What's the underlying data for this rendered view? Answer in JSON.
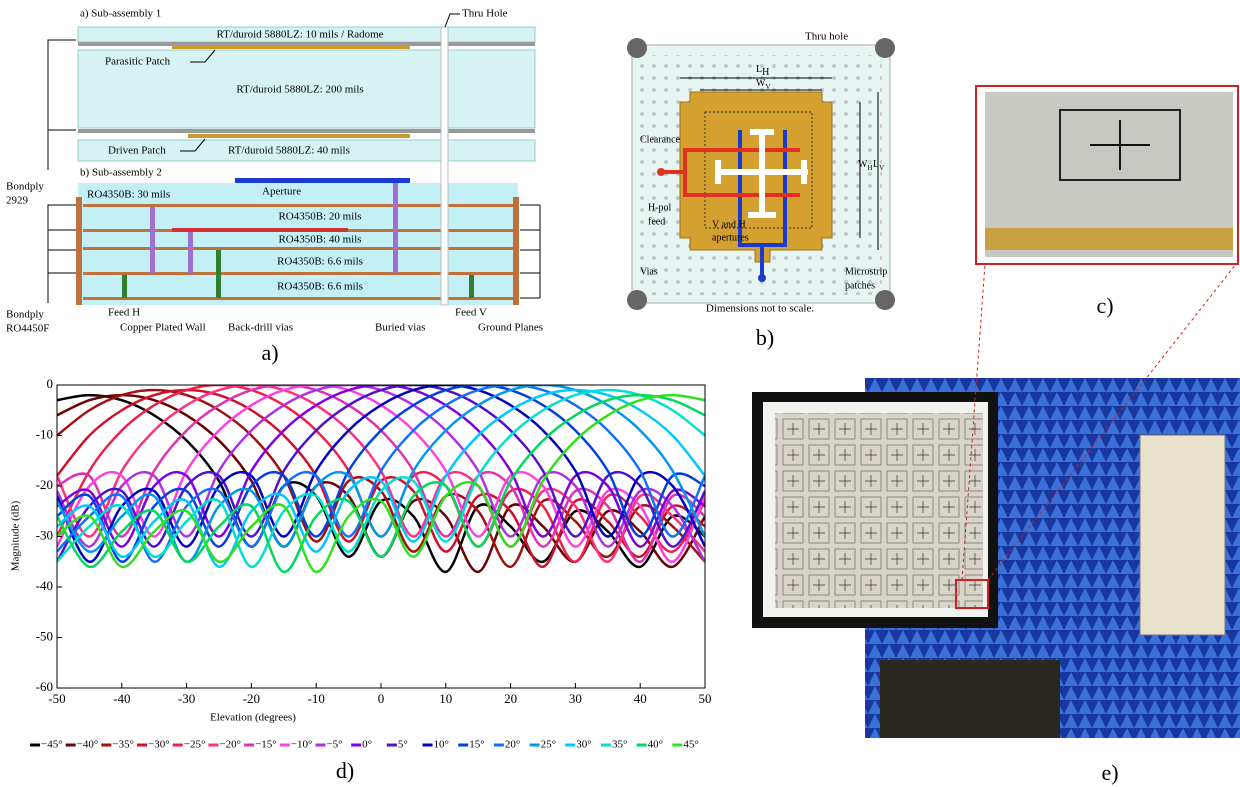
{
  "panel_a": {
    "label": "a)",
    "sub1": "a) Sub-assembly 1",
    "sub2": "b) Sub-assembly 2",
    "layers": [
      "RT/duroid 5880LZ: 10 mils / Radome",
      "RT/duroid 5880LZ: 200 mils",
      "RT/duroid 5880LZ: 40 mils",
      "RO4350B: 30 mils",
      "RO4350B: 20 mils",
      "RO4350B: 40 mils",
      "RO4350B: 6.6 mils",
      "RO4350B: 6.6 mils"
    ],
    "thru_hole": "Thru Hole",
    "parasitic": "Parasitic Patch",
    "driven": "Driven Patch",
    "aperture": "Aperture",
    "bondply1": [
      "Bondply",
      "2929"
    ],
    "bondply2": [
      "Bondply",
      "RO4450F"
    ],
    "feed_h": "Feed H",
    "feed_v": "Feed V",
    "wall": "Copper Plated Wall",
    "backdrill": "Back-drill vias",
    "buried": "Buried vias",
    "ground": "Ground Planes"
  },
  "panel_b": {
    "label": "b)",
    "thru_hole": "Thru hole",
    "lh": "L",
    "lh_sub": "H",
    "wv": "W",
    "wv_sub": "V",
    "wh": "W",
    "wh_sub": "H",
    "lv": "L",
    "lv_sub": "V",
    "clearance": "Clearance",
    "hpol": [
      "H-pol",
      "feed"
    ],
    "apertures": [
      "V and H",
      "apertures"
    ],
    "vias": "Vias",
    "patches": [
      "Microstrip",
      "patches"
    ],
    "note": "Dimensions not to scale."
  },
  "panel_c": {
    "label": "c)"
  },
  "panel_e": {
    "label": "e)"
  },
  "chart_data": {
    "type": "line",
    "label": "d)",
    "xlabel": "Elevation (degrees)",
    "ylabel": "Magnitude (dB)",
    "xlim": [
      -50,
      50
    ],
    "ylim": [
      -60,
      0
    ],
    "xticks": [
      -50,
      -40,
      -30,
      -20,
      -10,
      0,
      10,
      20,
      30,
      40,
      50
    ],
    "yticks": [
      -60,
      -50,
      -40,
      -30,
      -20,
      -10,
      0
    ],
    "x": [
      -50,
      -45,
      -40,
      -35,
      -30,
      -25,
      -20,
      -15,
      -10,
      -5,
      0,
      5,
      10,
      15,
      20,
      25,
      30,
      35,
      40,
      45,
      50
    ],
    "series": [
      {
        "name": "−45°",
        "color": "#000000",
        "values": [
          -3,
          -2,
          -3,
          -6,
          -11,
          -19,
          -32,
          -20,
          -22,
          -34,
          -23,
          -26,
          -37,
          -24,
          -28,
          -35,
          -25,
          -29,
          -36,
          -26,
          -30
        ]
      },
      {
        "name": "−40°",
        "color": "#6b0000",
        "values": [
          -6,
          -3,
          -2,
          -3,
          -6,
          -11,
          -19,
          -32,
          -20,
          -22,
          -34,
          -23,
          -26,
          -37,
          -24,
          -28,
          -35,
          -25,
          -29,
          -36,
          -26
        ]
      },
      {
        "name": "−35°",
        "color": "#a01010",
        "values": [
          -10,
          -5,
          -2,
          -1,
          -2,
          -5,
          -10,
          -18,
          -31,
          -19,
          -21,
          -33,
          -22,
          -25,
          -36,
          -23,
          -27,
          -34,
          -24,
          -28,
          -35
        ]
      },
      {
        "name": "−30°",
        "color": "#d0102a",
        "values": [
          -18,
          -10,
          -5,
          -2,
          -1,
          -2,
          -5,
          -10,
          -18,
          -31,
          -19,
          -21,
          -33,
          -22,
          -25,
          -36,
          -23,
          -27,
          -34,
          -24,
          -28
        ]
      },
      {
        "name": "−25°",
        "color": "#f0204a",
        "values": [
          -30,
          -17,
          -9,
          -4,
          -1,
          0,
          -1,
          -4,
          -9,
          -17,
          -30,
          -18,
          -20,
          -32,
          -21,
          -24,
          -35,
          -22,
          -26,
          -33,
          -23
        ]
      },
      {
        "name": "−20°",
        "color": "#ff3080",
        "values": [
          -18,
          -30,
          -17,
          -9,
          -4,
          -1,
          0,
          -1,
          -4,
          -9,
          -17,
          -30,
          -18,
          -20,
          -32,
          -21,
          -24,
          -35,
          -22,
          -26,
          -33
        ]
      },
      {
        "name": "−15°",
        "color": "#e030b0",
        "values": [
          -20,
          -18,
          -30,
          -17,
          -9,
          -4,
          -1,
          0,
          -1,
          -4,
          -9,
          -17,
          -30,
          -18,
          -20,
          -32,
          -21,
          -24,
          -35,
          -22,
          -26
        ]
      },
      {
        "name": "−10°",
        "color": "#ff40e0",
        "values": [
          -32,
          -20,
          -18,
          -30,
          -17,
          -9,
          -4,
          -1,
          0,
          -1,
          -4,
          -9,
          -17,
          -30,
          -18,
          -20,
          -32,
          -21,
          -24,
          -35,
          -22
        ]
      },
      {
        "name": "−5°",
        "color": "#b030e0",
        "values": [
          -21,
          -32,
          -20,
          -18,
          -30,
          -17,
          -9,
          -4,
          -1,
          0,
          -1,
          -4,
          -9,
          -17,
          -30,
          -18,
          -20,
          -32,
          -21,
          -24,
          -35
        ]
      },
      {
        "name": "0°",
        "color": "#8000e0",
        "values": [
          -24,
          -21,
          -32,
          -20,
          -18,
          -30,
          -17,
          -9,
          -4,
          -1,
          0,
          -1,
          -4,
          -9,
          -17,
          -30,
          -18,
          -20,
          -32,
          -21,
          -24
        ]
      },
      {
        "name": "5°",
        "color": "#5010d0",
        "values": [
          -35,
          -24,
          -21,
          -32,
          -20,
          -18,
          -30,
          -17,
          -9,
          -4,
          -1,
          0,
          -1,
          -4,
          -9,
          -17,
          -30,
          -18,
          -20,
          -32,
          -21
        ]
      },
      {
        "name": "10°",
        "color": "#0000c0",
        "values": [
          -22,
          -35,
          -24,
          -21,
          -32,
          -20,
          -18,
          -30,
          -17,
          -9,
          -4,
          -1,
          0,
          -1,
          -4,
          -9,
          -17,
          -30,
          -18,
          -20,
          -32
        ]
      },
      {
        "name": "15°",
        "color": "#0040e0",
        "values": [
          -26,
          -22,
          -35,
          -24,
          -21,
          -32,
          -20,
          -18,
          -30,
          -17,
          -9,
          -4,
          -1,
          0,
          -1,
          -4,
          -9,
          -17,
          -30,
          -18,
          -20
        ]
      },
      {
        "name": "20°",
        "color": "#1070ff",
        "values": [
          -33,
          -26,
          -22,
          -35,
          -24,
          -21,
          -32,
          -20,
          -18,
          -30,
          -17,
          -9,
          -4,
          -1,
          0,
          -1,
          -4,
          -9,
          -17,
          -30,
          -18
        ]
      },
      {
        "name": "25°",
        "color": "#0098e8",
        "values": [
          -23,
          -33,
          -26,
          -22,
          -35,
          -24,
          -21,
          -32,
          -20,
          -18,
          -30,
          -17,
          -9,
          -4,
          -1,
          0,
          -1,
          -4,
          -9,
          -17,
          -30
        ]
      },
      {
        "name": "30°",
        "color": "#00c8ff",
        "values": [
          -28,
          -24,
          -34,
          -27,
          -23,
          -36,
          -25,
          -22,
          -33,
          -21,
          -19,
          -31,
          -18,
          -10,
          -5,
          -2,
          -1,
          -2,
          -5,
          -10,
          -18
        ]
      },
      {
        "name": "35°",
        "color": "#00e0d0",
        "values": [
          -35,
          -28,
          -24,
          -34,
          -27,
          -23,
          -36,
          -25,
          -22,
          -33,
          -21,
          -19,
          -31,
          -18,
          -10,
          -5,
          -2,
          -1,
          -2,
          -5,
          -10
        ]
      },
      {
        "name": "40°",
        "color": "#00d860",
        "values": [
          -26,
          -36,
          -29,
          -25,
          -35,
          -28,
          -24,
          -37,
          -26,
          -23,
          -34,
          -22,
          -20,
          -32,
          -19,
          -11,
          -6,
          -3,
          -2,
          -3,
          -6
        ]
      },
      {
        "name": "45°",
        "color": "#30e020",
        "values": [
          -30,
          -26,
          -36,
          -29,
          -25,
          -35,
          -28,
          -24,
          -37,
          -26,
          -23,
          -34,
          -22,
          -20,
          -32,
          -19,
          -11,
          -6,
          -3,
          -2,
          -3
        ]
      }
    ]
  }
}
